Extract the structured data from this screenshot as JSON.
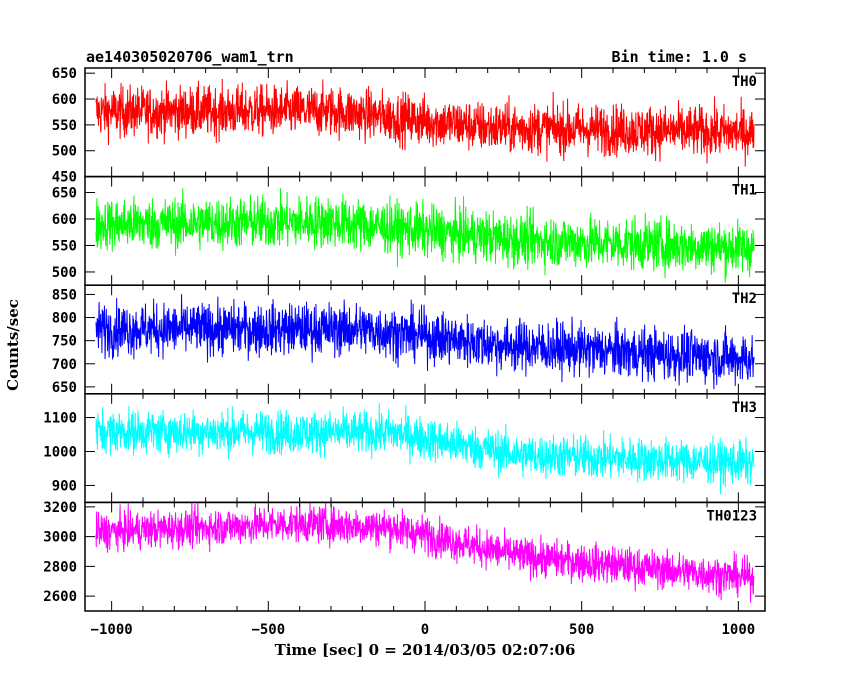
{
  "header": {
    "title": "ae140305020706_wam1_trn",
    "bin_time": "Bin time: 1.0 s"
  },
  "axes": {
    "xlabel": "Time [sec] 0 = 2014/03/05 02:07:06",
    "ylabel": "Counts/sec"
  },
  "chart_data": {
    "type": "line",
    "x_range": [
      -1085,
      1085
    ],
    "x_data_range": [
      -1050,
      1050
    ],
    "x_ticks": [
      -1000,
      -500,
      0,
      500,
      1000
    ],
    "x_tick_labels": [
      "−1000",
      "−500",
      "0",
      "500",
      "1000"
    ],
    "grid": false,
    "panels": [
      {
        "name": "TH0",
        "color": "#ff0000",
        "ylim": [
          450,
          660
        ],
        "yticks": [
          450,
          500,
          550,
          600,
          650
        ],
        "trend": [
          [
            -1050,
            575
          ],
          [
            -300,
            577
          ],
          [
            200,
            545
          ],
          [
            1050,
            535
          ]
        ],
        "noise": 35
      },
      {
        "name": "TH1",
        "color": "#00ff00",
        "ylim": [
          475,
          680
        ],
        "yticks": [
          500,
          550,
          600,
          650
        ],
        "trend": [
          [
            -1050,
            590
          ],
          [
            -300,
            595
          ],
          [
            300,
            560
          ],
          [
            1050,
            545
          ]
        ],
        "noise": 35
      },
      {
        "name": "TH2",
        "color": "#0000ff",
        "ylim": [
          635,
          870
        ],
        "yticks": [
          650,
          700,
          750,
          800,
          850
        ],
        "trend": [
          [
            -1050,
            775
          ],
          [
            -200,
            775
          ],
          [
            250,
            740
          ],
          [
            1050,
            710
          ]
        ],
        "noise": 40
      },
      {
        "name": "TH3",
        "color": "#00ffff",
        "ylim": [
          850,
          1170
        ],
        "yticks": [
          900,
          1000,
          1100
        ],
        "trend": [
          [
            -1050,
            1060
          ],
          [
            -100,
            1055
          ],
          [
            300,
            990
          ],
          [
            1050,
            965
          ]
        ],
        "noise": 45
      },
      {
        "name": "TH0123",
        "color": "#ff00ff",
        "ylim": [
          2500,
          3230
        ],
        "yticks": [
          2600,
          2800,
          3000,
          3200
        ],
        "trend": [
          [
            -1050,
            3030
          ],
          [
            -400,
            3090
          ],
          [
            -100,
            3060
          ],
          [
            300,
            2870
          ],
          [
            1050,
            2720
          ]
        ],
        "noise": 90
      }
    ]
  }
}
